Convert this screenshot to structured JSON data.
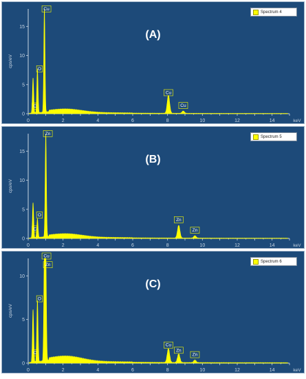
{
  "chart_data": [
    {
      "type": "line",
      "panel_label": "(A)",
      "legend": "Spectrum 4",
      "xlabel": "keV",
      "ylabel": "cps/eV",
      "xlim": [
        0,
        15
      ],
      "ylim": [
        0,
        18
      ],
      "x_ticks": [
        "0",
        "2",
        "4",
        "6",
        "8",
        "10",
        "12",
        "14"
      ],
      "y_ticks": [
        "0",
        "5",
        "10",
        "15"
      ],
      "peaks": [
        {
          "element": "C",
          "x": 0.28,
          "y": 5.5,
          "show": false
        },
        {
          "element": "C",
          "x": 0.27,
          "y": 0.5,
          "label_y": 0.9
        },
        {
          "element": "O",
          "x": 0.53,
          "y": 7.5,
          "label_y": 7.3
        },
        {
          "element": "Cu",
          "x": 0.93,
          "y": 17.8,
          "label_y": 17.6
        },
        {
          "element": "Cu",
          "x": 8.05,
          "y": 3.1,
          "label_y": 3.2
        },
        {
          "element": "Cu",
          "x": 8.9,
          "y": 0.4,
          "label_y": 1.0
        }
      ]
    },
    {
      "type": "line",
      "panel_label": "(B)",
      "legend": "Spectrum 5",
      "xlabel": "keV",
      "ylabel": "cps/eV",
      "xlim": [
        0,
        15
      ],
      "ylim": [
        0,
        18
      ],
      "x_ticks": [
        "0",
        "2",
        "4",
        "6",
        "8",
        "10",
        "12",
        "14"
      ],
      "y_ticks": [
        "0",
        "5",
        "10",
        "15"
      ],
      "peaks": [
        {
          "element": "C",
          "x": 0.28,
          "y": 5.5,
          "show": false
        },
        {
          "element": "C",
          "x": 0.27,
          "y": 0.5,
          "label_y": 1.2
        },
        {
          "element": "O",
          "x": 0.53,
          "y": 3.2,
          "label_y": 3.6
        },
        {
          "element": "Zn",
          "x": 1.01,
          "y": 17.8,
          "label_y": 17.6
        },
        {
          "element": "Zn",
          "x": 8.64,
          "y": 2.2,
          "label_y": 2.8
        },
        {
          "element": "Zn",
          "x": 9.57,
          "y": 0.4,
          "label_y": 1.0
        }
      ]
    },
    {
      "type": "line",
      "panel_label": "(C)",
      "legend": "Spectrum 6",
      "xlabel": "keV",
      "ylabel": "cps/eV",
      "xlim": [
        0,
        15
      ],
      "ylim": [
        0,
        12
      ],
      "x_ticks": [
        "0",
        "2",
        "4",
        "6",
        "8",
        "10",
        "12",
        "14"
      ],
      "y_ticks": [
        "0",
        "5",
        "10"
      ],
      "peaks": [
        {
          "element": "C",
          "x": 0.28,
          "y": 5.6,
          "show": false
        },
        {
          "element": "C",
          "x": 0.27,
          "y": 0.4,
          "label_y": 0.9
        },
        {
          "element": "O",
          "x": 0.53,
          "y": 7.0,
          "label_y": 7.1
        },
        {
          "element": "Cu",
          "x": 0.93,
          "y": 12.3,
          "label_y": 12.0
        },
        {
          "element": "Zn",
          "x": 1.01,
          "y": 11.9,
          "label_y": 11.0
        },
        {
          "element": "Cu",
          "x": 8.05,
          "y": 1.6,
          "label_y": 1.8
        },
        {
          "element": "Zn",
          "x": 8.64,
          "y": 1.0,
          "label_y": 1.2
        },
        {
          "element": "Zn",
          "x": 9.57,
          "y": 0.3,
          "label_y": 0.7
        }
      ]
    }
  ]
}
